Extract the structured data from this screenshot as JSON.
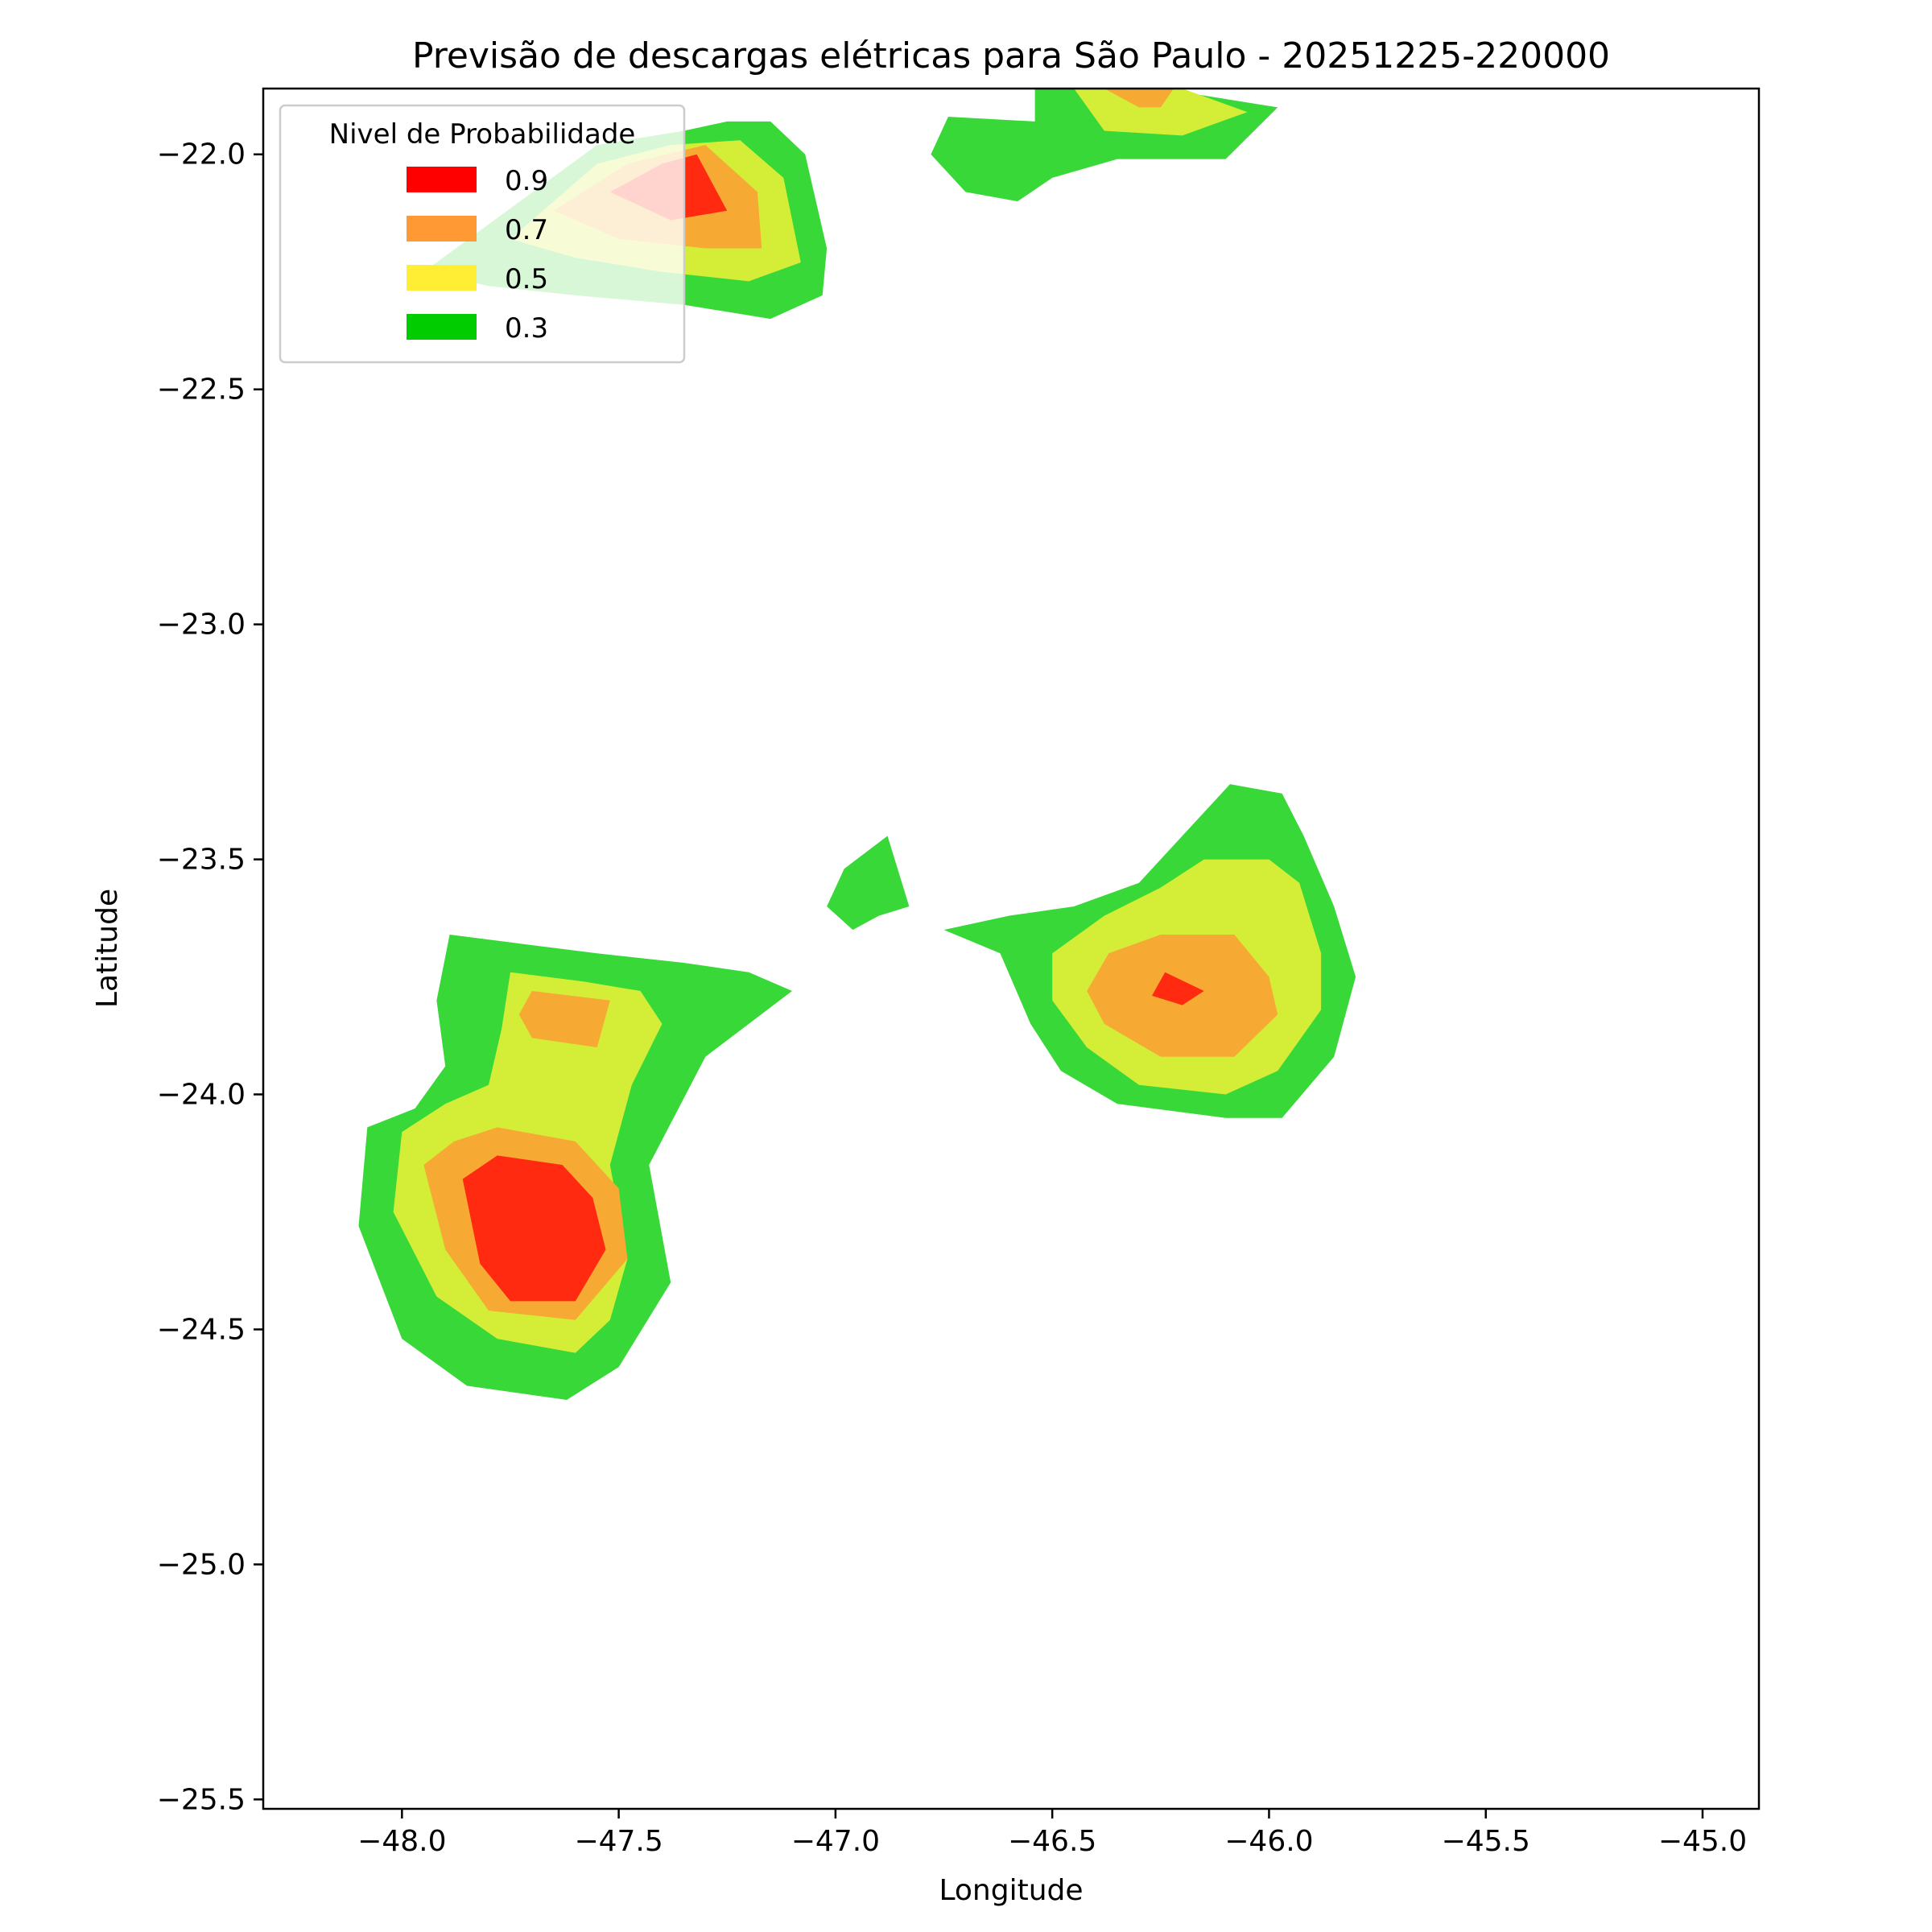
{
  "chart_data": {
    "type": "contour",
    "title": "Previsão de descargas elétricas para São Paulo - 20251225-220000",
    "xlabel": "Longitude",
    "ylabel": "Latitude",
    "xlim": [
      -48.32,
      -44.87
    ],
    "ylim": [
      -25.52,
      -21.86
    ],
    "x_ticks": [
      -48.0,
      -47.5,
      -47.0,
      -46.5,
      -46.0,
      -45.5,
      -45.0
    ],
    "x_tick_labels": [
      "−48.0",
      "−47.5",
      "−47.0",
      "−46.5",
      "−46.0",
      "−45.5",
      "−45.0"
    ],
    "y_ticks": [
      -22.0,
      -22.5,
      -23.0,
      -23.5,
      -24.0,
      -24.5,
      -25.0,
      -25.5
    ],
    "y_tick_labels": [
      "−22.0",
      "−22.5",
      "−23.0",
      "−23.5",
      "−24.0",
      "−24.5",
      "−25.0",
      "−25.5"
    ],
    "grid": false,
    "legend": {
      "title": "Nivel de Probabilidade",
      "placement": "top-left",
      "entries": [
        {
          "label": "0.9",
          "color": "#ff0000"
        },
        {
          "label": "0.7",
          "color": "#ff9933"
        },
        {
          "label": "0.5",
          "color": "#ffee33"
        },
        {
          "label": "0.3",
          "color": "#00cc00"
        }
      ]
    },
    "level_colors": {
      "0.3": "#39d839",
      "0.5": "#d4ee38",
      "0.7": "#f6aa33",
      "0.9": "#ff2a10"
    },
    "regions": [
      {
        "name": "southwest-cell",
        "levels": [
          {
            "level": "0.3",
            "points": [
              [
                -47.89,
                -23.66
              ],
              [
                -47.72,
                -23.68
              ],
              [
                -47.55,
                -23.7
              ],
              [
                -47.35,
                -23.72
              ],
              [
                -47.2,
                -23.74
              ],
              [
                -47.1,
                -23.78
              ],
              [
                -47.3,
                -23.92
              ],
              [
                -47.43,
                -24.15
              ],
              [
                -47.38,
                -24.4
              ],
              [
                -47.5,
                -24.58
              ],
              [
                -47.62,
                -24.65
              ],
              [
                -47.85,
                -24.62
              ],
              [
                -48.0,
                -24.52
              ],
              [
                -48.1,
                -24.28
              ],
              [
                -48.08,
                -24.07
              ],
              [
                -47.97,
                -24.03
              ],
              [
                -47.9,
                -23.94
              ],
              [
                -47.92,
                -23.8
              ]
            ]
          },
          {
            "level": "0.5",
            "points": [
              [
                -47.75,
                -23.74
              ],
              [
                -47.58,
                -23.76
              ],
              [
                -47.45,
                -23.78
              ],
              [
                -47.4,
                -23.85
              ],
              [
                -47.47,
                -23.98
              ],
              [
                -47.52,
                -24.15
              ],
              [
                -47.48,
                -24.35
              ],
              [
                -47.52,
                -24.48
              ],
              [
                -47.6,
                -24.55
              ],
              [
                -47.78,
                -24.52
              ],
              [
                -47.92,
                -24.43
              ],
              [
                -48.02,
                -24.25
              ],
              [
                -48.0,
                -24.08
              ],
              [
                -47.9,
                -24.02
              ],
              [
                -47.8,
                -23.98
              ],
              [
                -47.77,
                -23.86
              ]
            ]
          },
          {
            "level": "0.7",
            "points": [
              [
                -47.7,
                -23.78
              ],
              [
                -47.52,
                -23.8
              ],
              [
                -47.55,
                -23.9
              ],
              [
                -47.7,
                -23.88
              ],
              [
                -47.73,
                -23.83
              ]
            ]
          },
          {
            "level": "0.7",
            "points": [
              [
                -47.78,
                -24.07
              ],
              [
                -47.6,
                -24.1
              ],
              [
                -47.5,
                -24.2
              ],
              [
                -47.48,
                -24.35
              ],
              [
                -47.6,
                -24.48
              ],
              [
                -47.8,
                -24.46
              ],
              [
                -47.9,
                -24.33
              ],
              [
                -47.95,
                -24.15
              ],
              [
                -47.88,
                -24.1
              ]
            ]
          },
          {
            "level": "0.9",
            "points": [
              [
                -47.78,
                -24.13
              ],
              [
                -47.63,
                -24.15
              ],
              [
                -47.56,
                -24.22
              ],
              [
                -47.53,
                -24.33
              ],
              [
                -47.6,
                -24.44
              ],
              [
                -47.75,
                -24.44
              ],
              [
                -47.82,
                -24.36
              ],
              [
                -47.86,
                -24.18
              ]
            ]
          }
        ]
      },
      {
        "name": "east-cell",
        "levels": [
          {
            "level": "0.3",
            "points": [
              [
                -46.09,
                -23.34
              ],
              [
                -45.97,
                -23.36
              ],
              [
                -45.92,
                -23.45
              ],
              [
                -45.85,
                -23.6
              ],
              [
                -45.8,
                -23.75
              ],
              [
                -45.85,
                -23.92
              ],
              [
                -45.97,
                -24.05
              ],
              [
                -46.1,
                -24.05
              ],
              [
                -46.35,
                -24.02
              ],
              [
                -46.48,
                -23.95
              ],
              [
                -46.55,
                -23.85
              ],
              [
                -46.62,
                -23.7
              ],
              [
                -46.75,
                -23.65
              ],
              [
                -46.6,
                -23.62
              ],
              [
                -46.45,
                -23.6
              ],
              [
                -46.3,
                -23.55
              ],
              [
                -46.2,
                -23.45
              ]
            ]
          },
          {
            "level": "0.5",
            "points": [
              [
                -46.0,
                -23.5
              ],
              [
                -45.93,
                -23.55
              ],
              [
                -45.88,
                -23.7
              ],
              [
                -45.88,
                -23.82
              ],
              [
                -45.98,
                -23.95
              ],
              [
                -46.1,
                -24.0
              ],
              [
                -46.3,
                -23.98
              ],
              [
                -46.42,
                -23.9
              ],
              [
                -46.5,
                -23.8
              ],
              [
                -46.5,
                -23.7
              ],
              [
                -46.38,
                -23.62
              ],
              [
                -46.25,
                -23.56
              ],
              [
                -46.15,
                -23.5
              ]
            ]
          },
          {
            "level": "0.7",
            "points": [
              [
                -46.25,
                -23.66
              ],
              [
                -46.08,
                -23.66
              ],
              [
                -46.0,
                -23.75
              ],
              [
                -45.98,
                -23.83
              ],
              [
                -46.08,
                -23.92
              ],
              [
                -46.25,
                -23.92
              ],
              [
                -46.38,
                -23.85
              ],
              [
                -46.42,
                -23.78
              ],
              [
                -46.37,
                -23.7
              ]
            ]
          },
          {
            "level": "0.9",
            "points": [
              [
                -46.24,
                -23.74
              ],
              [
                -46.15,
                -23.78
              ],
              [
                -46.2,
                -23.81
              ],
              [
                -46.27,
                -23.79
              ]
            ]
          }
        ]
      },
      {
        "name": "central-fragment",
        "levels": [
          {
            "level": "0.3",
            "points": [
              [
                -46.88,
                -23.45
              ],
              [
                -46.83,
                -23.6
              ],
              [
                -46.9,
                -23.62
              ],
              [
                -46.96,
                -23.65
              ],
              [
                -47.02,
                -23.6
              ],
              [
                -46.98,
                -23.52
              ]
            ]
          }
        ]
      },
      {
        "name": "northwest-cell",
        "levels": [
          {
            "level": "0.3",
            "points": [
              [
                -47.15,
                -21.93
              ],
              [
                -47.07,
                -22.0
              ],
              [
                -47.02,
                -22.2
              ],
              [
                -47.03,
                -22.3
              ],
              [
                -47.15,
                -22.35
              ],
              [
                -47.35,
                -22.32
              ],
              [
                -47.6,
                -22.3
              ],
              [
                -47.8,
                -22.28
              ],
              [
                -47.95,
                -22.25
              ],
              [
                -47.55,
                -21.98
              ],
              [
                -47.35,
                -21.95
              ],
              [
                -47.25,
                -21.93
              ]
            ]
          },
          {
            "level": "0.5",
            "points": [
              [
                -47.22,
                -21.97
              ],
              [
                -47.12,
                -22.05
              ],
              [
                -47.08,
                -22.23
              ],
              [
                -47.2,
                -22.27
              ],
              [
                -47.4,
                -22.25
              ],
              [
                -47.6,
                -22.22
              ],
              [
                -47.75,
                -22.18
              ],
              [
                -47.55,
                -22.02
              ],
              [
                -47.38,
                -21.98
              ]
            ]
          },
          {
            "level": "0.7",
            "points": [
              [
                -47.3,
                -21.98
              ],
              [
                -47.18,
                -22.08
              ],
              [
                -47.17,
                -22.2
              ],
              [
                -47.3,
                -22.2
              ],
              [
                -47.5,
                -22.18
              ],
              [
                -47.65,
                -22.12
              ],
              [
                -47.48,
                -22.02
              ]
            ]
          },
          {
            "level": "0.9",
            "points": [
              [
                -47.32,
                -22.0
              ],
              [
                -47.25,
                -22.12
              ],
              [
                -47.38,
                -22.14
              ],
              [
                -47.52,
                -22.08
              ],
              [
                -47.4,
                -22.02
              ]
            ]
          }
        ]
      },
      {
        "name": "north-cell",
        "levels": [
          {
            "level": "0.3",
            "points": [
              [
                -46.54,
                -21.86
              ],
              [
                -46.25,
                -21.86
              ],
              [
                -45.98,
                -21.9
              ],
              [
                -46.1,
                -22.01
              ],
              [
                -46.35,
                -22.01
              ],
              [
                -46.5,
                -22.05
              ],
              [
                -46.58,
                -22.1
              ],
              [
                -46.7,
                -22.08
              ],
              [
                -46.78,
                -22.0
              ],
              [
                -46.74,
                -21.92
              ],
              [
                -46.54,
                -21.93
              ]
            ]
          },
          {
            "level": "0.5",
            "points": [
              [
                -46.45,
                -21.86
              ],
              [
                -46.2,
                -21.86
              ],
              [
                -46.05,
                -21.91
              ],
              [
                -46.2,
                -21.96
              ],
              [
                -46.38,
                -21.95
              ]
            ]
          },
          {
            "level": "0.7",
            "points": [
              [
                -46.38,
                -21.86
              ],
              [
                -46.22,
                -21.86
              ],
              [
                -46.25,
                -21.9
              ],
              [
                -46.3,
                -21.9
              ]
            ]
          }
        ]
      }
    ]
  }
}
